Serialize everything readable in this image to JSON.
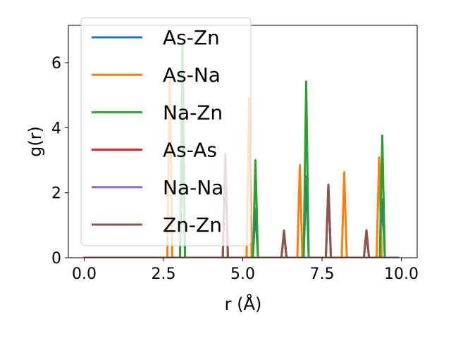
{
  "chart_data": {
    "type": "line",
    "title": "",
    "xlabel": "r (Å)",
    "ylabel": "g(r)",
    "xlim": [
      -0.5,
      10.5
    ],
    "ylim": [
      0,
      7.15
    ],
    "xticks": [
      0.0,
      2.5,
      5.0,
      7.5,
      10.0
    ],
    "xtick_labels": [
      "0.0",
      "2.5",
      "5.0",
      "7.5",
      "10.0"
    ],
    "yticks": [
      0,
      2,
      4,
      6
    ],
    "ytick_labels": [
      "0",
      "2",
      "4",
      "6"
    ],
    "x_range": [
      0.0,
      9.9
    ],
    "grid": false,
    "legend_position": "top-left",
    "series": [
      {
        "name": "As-Zn",
        "color": "#1f77b4",
        "peaks": [
          [
            3.1,
            4.0
          ],
          [
            5.4,
            1.5
          ],
          [
            7.0,
            2.5
          ],
          [
            9.4,
            1.8
          ]
        ]
      },
      {
        "name": "As-Na",
        "color": "#ff7f0e",
        "peaks": [
          [
            2.7,
            5.6
          ],
          [
            5.2,
            4.9
          ],
          [
            6.8,
            2.85
          ],
          [
            8.2,
            2.63
          ],
          [
            9.3,
            3.08
          ]
        ]
      },
      {
        "name": "Na-Zn",
        "color": "#2ca02c",
        "peaks": [
          [
            3.1,
            6.65
          ],
          [
            5.4,
            3.0
          ],
          [
            7.0,
            5.42
          ],
          [
            9.4,
            3.76
          ]
        ]
      },
      {
        "name": "As-As",
        "color": "#d62728",
        "peaks": [
          [
            4.45,
            3.1
          ],
          [
            6.3,
            0.8
          ],
          [
            7.7,
            2.2
          ],
          [
            8.9,
            0.82
          ]
        ]
      },
      {
        "name": "Na-Na",
        "color": "#9467bd",
        "peaks": [
          [
            4.45,
            3.15
          ],
          [
            6.3,
            0.82
          ],
          [
            7.7,
            2.22
          ],
          [
            8.9,
            0.83
          ]
        ]
      },
      {
        "name": "Zn-Zn",
        "color": "#8c564b",
        "peaks": [
          [
            4.45,
            3.2
          ],
          [
            6.3,
            0.84
          ],
          [
            7.7,
            2.25
          ],
          [
            8.9,
            0.85
          ]
        ]
      }
    ]
  }
}
